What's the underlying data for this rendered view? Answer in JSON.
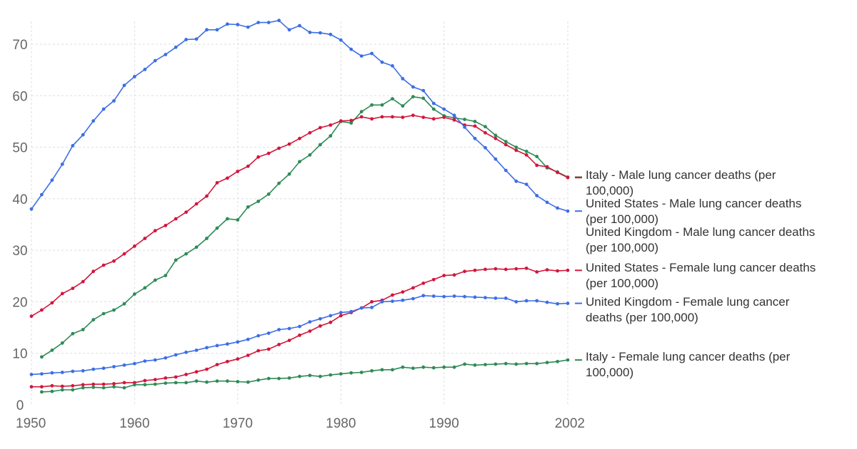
{
  "chart_data": {
    "type": "line",
    "xlim": [
      1950,
      2002
    ],
    "ylim": [
      0,
      75
    ],
    "grid": true,
    "legend_position": "right, at series end",
    "x_ticks": [
      1950,
      1960,
      1970,
      1980,
      1990,
      2002
    ],
    "y_ticks": [
      0,
      10,
      20,
      30,
      40,
      50,
      60,
      70
    ],
    "series": [
      {
        "name": "Italy - Male lung cancer deaths (per 100,000)",
        "color": "#2e8b57",
        "x": [
          1951,
          1952,
          1953,
          1954,
          1955,
          1956,
          1957,
          1958,
          1959,
          1960,
          1961,
          1962,
          1963,
          1964,
          1965,
          1966,
          1967,
          1968,
          1969,
          1970,
          1971,
          1972,
          1973,
          1974,
          1975,
          1976,
          1977,
          1978,
          1979,
          1980,
          1981,
          1982,
          1983,
          1984,
          1985,
          1986,
          1987,
          1988,
          1989,
          1990,
          1991,
          1992,
          1993,
          1994,
          1995,
          1996,
          1997,
          1998,
          1999,
          2000,
          2001,
          2002
        ],
        "y": [
          9.3,
          10.6,
          12.0,
          13.8,
          14.6,
          16.5,
          17.7,
          18.4,
          19.6,
          21.5,
          22.7,
          24.2,
          25.1,
          28.1,
          29.3,
          30.6,
          32.3,
          34.3,
          36.1,
          35.9,
          38.4,
          39.5,
          40.9,
          43.0,
          44.8,
          47.2,
          48.5,
          50.5,
          52.2,
          55.0,
          54.7,
          56.9,
          58.2,
          58.2,
          59.4,
          58.0,
          59.8,
          59.5,
          57.4,
          56.1,
          55.7,
          55.4,
          55.0,
          54.0,
          52.3,
          51.1,
          50.0,
          49.2,
          48.2,
          46.0,
          45.2,
          44.2
        ]
      },
      {
        "name": "United States - Male lung cancer deaths (per 100,000)",
        "color": "#d3163b",
        "x": [
          1950,
          1951,
          1952,
          1953,
          1954,
          1955,
          1956,
          1957,
          1958,
          1959,
          1960,
          1961,
          1962,
          1963,
          1964,
          1965,
          1966,
          1967,
          1968,
          1969,
          1970,
          1971,
          1972,
          1973,
          1974,
          1975,
          1976,
          1977,
          1978,
          1979,
          1980,
          1981,
          1982,
          1983,
          1984,
          1985,
          1986,
          1987,
          1988,
          1989,
          1990,
          1991,
          1992,
          1993,
          1994,
          1995,
          1996,
          1997,
          1998,
          1999,
          2000,
          2001,
          2002
        ],
        "y": [
          17.2,
          18.4,
          19.8,
          21.6,
          22.6,
          23.9,
          25.9,
          27.1,
          27.9,
          29.3,
          30.8,
          32.3,
          33.8,
          34.8,
          36.1,
          37.4,
          39.0,
          40.5,
          43.1,
          44.0,
          45.3,
          46.3,
          48.1,
          48.8,
          49.8,
          50.6,
          51.7,
          52.8,
          53.8,
          54.3,
          55.1,
          55.2,
          55.9,
          55.5,
          55.9,
          55.9,
          55.8,
          56.2,
          55.8,
          55.5,
          55.8,
          55.3,
          54.3,
          54.1,
          52.8,
          51.7,
          50.5,
          49.4,
          48.5,
          46.5,
          46.2,
          45.1,
          44.1
        ]
      },
      {
        "name": "United Kingdom - Male lung cancer deaths (per 100,000)",
        "color": "#3c6ee6",
        "x": [
          1950,
          1951,
          1952,
          1953,
          1954,
          1955,
          1956,
          1957,
          1958,
          1959,
          1960,
          1961,
          1962,
          1963,
          1964,
          1965,
          1966,
          1967,
          1968,
          1969,
          1970,
          1971,
          1972,
          1973,
          1974,
          1975,
          1976,
          1977,
          1978,
          1979,
          1980,
          1981,
          1982,
          1983,
          1984,
          1985,
          1986,
          1987,
          1988,
          1989,
          1990,
          1991,
          1992,
          1993,
          1994,
          1995,
          1996,
          1997,
          1998,
          1999,
          2000,
          2001,
          2002
        ],
        "y": [
          38.0,
          40.8,
          43.6,
          46.7,
          50.3,
          52.4,
          55.1,
          57.4,
          59.0,
          62.0,
          63.7,
          65.1,
          66.8,
          68.0,
          69.4,
          70.9,
          71.0,
          72.8,
          72.8,
          73.9,
          73.8,
          73.3,
          74.2,
          74.2,
          74.6,
          72.8,
          73.6,
          72.3,
          72.2,
          71.9,
          70.8,
          69.0,
          67.7,
          68.2,
          66.5,
          65.8,
          63.3,
          61.7,
          61.0,
          58.5,
          57.4,
          56.2,
          53.9,
          51.7,
          49.9,
          47.7,
          45.5,
          43.4,
          42.8,
          40.6,
          39.3,
          38.2,
          37.6
        ]
      },
      {
        "name": "United States - Female lung cancer deaths (per 100,000)",
        "color": "#d3163b",
        "x": [
          1950,
          1951,
          1952,
          1953,
          1954,
          1955,
          1956,
          1957,
          1958,
          1959,
          1960,
          1961,
          1962,
          1963,
          1964,
          1965,
          1966,
          1967,
          1968,
          1969,
          1970,
          1971,
          1972,
          1973,
          1974,
          1975,
          1976,
          1977,
          1978,
          1979,
          1980,
          1981,
          1982,
          1983,
          1984,
          1985,
          1986,
          1987,
          1988,
          1989,
          1990,
          1991,
          1992,
          1993,
          1994,
          1995,
          1996,
          1997,
          1998,
          1999,
          2000,
          2001,
          2002
        ],
        "y": [
          3.5,
          3.5,
          3.7,
          3.6,
          3.7,
          3.9,
          4.0,
          4.0,
          4.1,
          4.3,
          4.3,
          4.7,
          4.9,
          5.2,
          5.4,
          5.9,
          6.4,
          6.9,
          7.8,
          8.4,
          8.9,
          9.6,
          10.5,
          10.8,
          11.7,
          12.5,
          13.5,
          14.3,
          15.3,
          16.0,
          17.3,
          17.9,
          18.8,
          20.0,
          20.3,
          21.3,
          21.9,
          22.7,
          23.6,
          24.3,
          25.1,
          25.2,
          25.9,
          26.1,
          26.3,
          26.4,
          26.3,
          26.4,
          26.5,
          25.8,
          26.2,
          26.0,
          26.1
        ]
      },
      {
        "name": "United Kingdom - Female lung cancer deaths (per 100,000)",
        "color": "#3c6ee6",
        "x": [
          1950,
          1951,
          1952,
          1953,
          1954,
          1955,
          1956,
          1957,
          1958,
          1959,
          1960,
          1961,
          1962,
          1963,
          1964,
          1965,
          1966,
          1967,
          1968,
          1969,
          1970,
          1971,
          1972,
          1973,
          1974,
          1975,
          1976,
          1977,
          1978,
          1979,
          1980,
          1981,
          1982,
          1983,
          1984,
          1985,
          1986,
          1987,
          1988,
          1989,
          1990,
          1991,
          1992,
          1993,
          1994,
          1995,
          1996,
          1997,
          1998,
          1999,
          2000,
          2001,
          2002
        ],
        "y": [
          5.9,
          6.0,
          6.2,
          6.3,
          6.5,
          6.6,
          6.9,
          7.1,
          7.4,
          7.7,
          8.0,
          8.5,
          8.7,
          9.1,
          9.7,
          10.2,
          10.6,
          11.1,
          11.5,
          11.8,
          12.2,
          12.7,
          13.4,
          13.9,
          14.6,
          14.8,
          15.2,
          16.1,
          16.7,
          17.3,
          17.9,
          18.1,
          18.8,
          18.9,
          20.0,
          20.1,
          20.3,
          20.6,
          21.2,
          21.1,
          21.0,
          21.1,
          21.0,
          20.9,
          20.8,
          20.7,
          20.7,
          20.0,
          20.2,
          20.2,
          19.9,
          19.6,
          19.7
        ]
      },
      {
        "name": "Italy - Female lung cancer deaths (per 100,000)",
        "color": "#2e8b57",
        "x": [
          1951,
          1952,
          1953,
          1954,
          1955,
          1956,
          1957,
          1958,
          1959,
          1960,
          1961,
          1962,
          1963,
          1964,
          1965,
          1966,
          1967,
          1968,
          1969,
          1970,
          1971,
          1972,
          1973,
          1974,
          1975,
          1976,
          1977,
          1978,
          1979,
          1980,
          1981,
          1982,
          1983,
          1984,
          1985,
          1986,
          1987,
          1988,
          1989,
          1990,
          1991,
          1992,
          1993,
          1994,
          1995,
          1996,
          1997,
          1998,
          1999,
          2000,
          2001,
          2002
        ],
        "y": [
          2.5,
          2.6,
          2.9,
          2.9,
          3.3,
          3.4,
          3.3,
          3.5,
          3.3,
          3.9,
          3.9,
          4.0,
          4.2,
          4.3,
          4.3,
          4.6,
          4.4,
          4.6,
          4.6,
          4.5,
          4.4,
          4.8,
          5.1,
          5.1,
          5.2,
          5.5,
          5.7,
          5.5,
          5.8,
          6.0,
          6.2,
          6.3,
          6.6,
          6.8,
          6.8,
          7.3,
          7.1,
          7.3,
          7.2,
          7.3,
          7.3,
          7.9,
          7.7,
          7.8,
          7.9,
          8.0,
          7.9,
          8.0,
          8.0,
          8.2,
          8.4,
          8.7
        ]
      }
    ]
  }
}
